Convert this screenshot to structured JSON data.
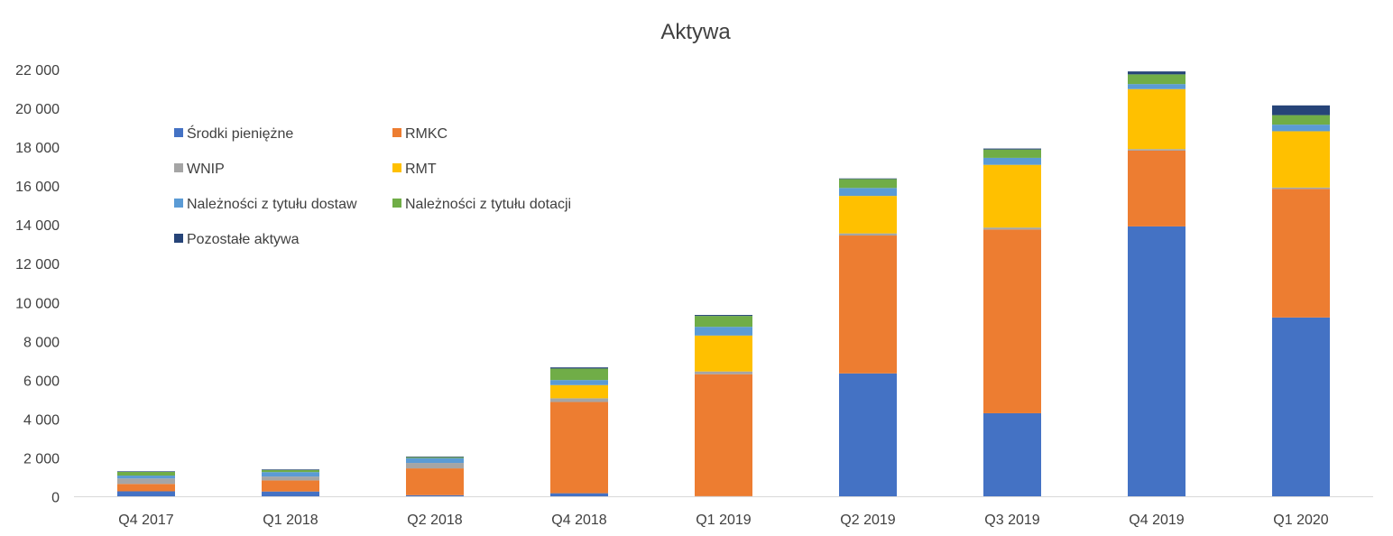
{
  "chart_data": {
    "type": "bar",
    "stacked": true,
    "title": "Aktywa",
    "xlabel": "",
    "ylabel": "",
    "ylim": [
      0,
      22000
    ],
    "yticks": [
      0,
      2000,
      4000,
      6000,
      8000,
      10000,
      12000,
      14000,
      16000,
      18000,
      20000,
      22000
    ],
    "ytick_labels": [
      "0",
      "2 000",
      "4 000",
      "6 000",
      "8 000",
      "10 000",
      "12 000",
      "14 000",
      "16 000",
      "18 000",
      "20 000",
      "22 000"
    ],
    "grid": false,
    "legend_position": "top-left",
    "categories": [
      "Q4 2017",
      "Q1 2018",
      "Q2 2018",
      "Q4 2018",
      "Q1 2019",
      "Q2 2019",
      "Q3 2019",
      "Q4 2019",
      "Q1 2020"
    ],
    "series": [
      {
        "name": "Środki pieniężne",
        "color": "#4472C4",
        "values": [
          280,
          270,
          80,
          180,
          30,
          6350,
          4300,
          13920,
          9230
        ]
      },
      {
        "name": "RMKC",
        "color": "#ED7D31",
        "values": [
          380,
          570,
          1380,
          4700,
          6280,
          7100,
          9460,
          3900,
          6620
        ]
      },
      {
        "name": "WNIP",
        "color": "#A5A5A5",
        "values": [
          280,
          200,
          280,
          190,
          140,
          110,
          100,
          80,
          70
        ]
      },
      {
        "name": "RMT",
        "color": "#FFC000",
        "values": [
          0,
          0,
          0,
          680,
          1850,
          1930,
          3230,
          3090,
          2900
        ]
      },
      {
        "name": "Należności z tytułu dostaw",
        "color": "#5B9BD5",
        "values": [
          150,
          230,
          250,
          260,
          450,
          410,
          360,
          260,
          340
        ]
      },
      {
        "name": "Należności z tytułu dotacji",
        "color": "#70AD47",
        "values": [
          190,
          110,
          50,
          590,
          560,
          460,
          430,
          500,
          490
        ]
      },
      {
        "name": "Pozostałe aktywa",
        "color": "#264478",
        "values": [
          30,
          30,
          30,
          60,
          50,
          30,
          50,
          150,
          500
        ]
      }
    ]
  }
}
